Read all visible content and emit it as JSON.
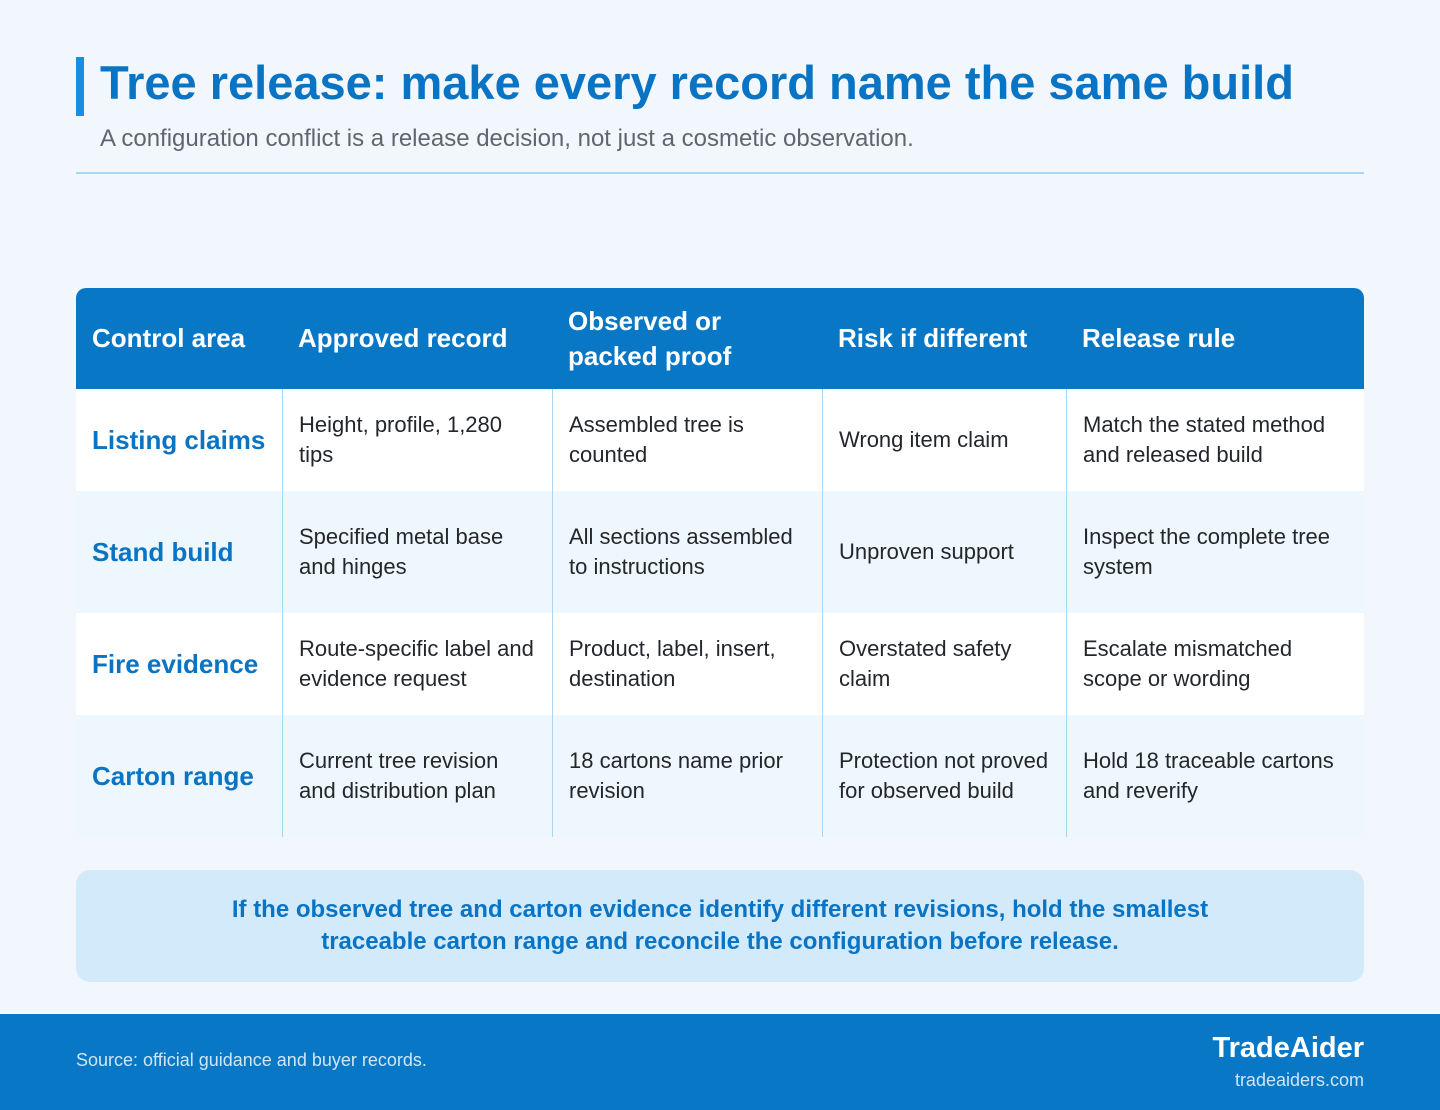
{
  "header": {
    "title": "Tree release: make every record name the same build",
    "subtitle": "A configuration conflict is a release decision, not just a cosmetic observation."
  },
  "table": {
    "columns": [
      "Control area",
      "Approved record",
      "Observed or packed proof",
      "Risk if different",
      "Release rule"
    ],
    "rows": [
      [
        "Listing claims",
        "Height, profile, 1,280 tips",
        "Assembled tree is counted",
        "Wrong item claim",
        "Match the stated method and released build"
      ],
      [
        "Stand build",
        "Specified metal base and hinges",
        "All sections assembled to instructions",
        "Unproven support",
        "Inspect the complete tree system"
      ],
      [
        "Fire evidence",
        "Route-specific label and evidence request",
        "Product, label, insert, destination",
        "Overstated safety claim",
        "Escalate mismatched scope or wording"
      ],
      [
        "Carton range",
        "Current tree revision and distribution plan",
        "18 cartons name prior revision",
        "Protection not proved for observed build",
        "Hold 18 traceable cartons and reverify"
      ]
    ]
  },
  "callout": "If the observed tree and carton evidence identify different revisions, hold the smallest traceable carton range and reconcile the configuration before release.",
  "footer": {
    "source": "Source: official guidance and buyer records.",
    "brand": "TradeAider",
    "url": "tradeaiders.com"
  }
}
